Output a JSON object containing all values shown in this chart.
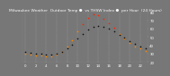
{
  "title": "Milwaukee Weather  Outdoor Temp ●  vs THSW Index ●  per Hour  (24 Hours)",
  "bg_color": "#777777",
  "plot_bg_color": "#777777",
  "hours": [
    0,
    1,
    2,
    3,
    4,
    5,
    6,
    7,
    8,
    9,
    10,
    11,
    12,
    13,
    14,
    15,
    16,
    17,
    18,
    19,
    20,
    21,
    22,
    23
  ],
  "temp": [
    32,
    31,
    30,
    30,
    29,
    29,
    30,
    32,
    36,
    41,
    48,
    54,
    59,
    62,
    63,
    62,
    60,
    57,
    53,
    49,
    45,
    42,
    39,
    36
  ],
  "thsw": [
    30,
    29,
    28,
    28,
    27,
    27,
    29,
    32,
    38,
    46,
    57,
    66,
    73,
    77,
    76,
    72,
    67,
    61,
    54,
    48,
    43,
    39,
    36,
    33
  ],
  "temp_color": "#111111",
  "thsw_color": "#ff8800",
  "thsw_color2": "#ff2200",
  "thsw_threshold": 60,
  "ylim": [
    20,
    80
  ],
  "yticks": [
    20,
    30,
    40,
    50,
    60,
    70,
    80
  ],
  "title_fontsize": 3.2,
  "tick_fontsize": 2.8,
  "marker_size": 1.2,
  "grid_positions": [
    0,
    2,
    4,
    6,
    8,
    10,
    12,
    14,
    16,
    18,
    20,
    22,
    24
  ]
}
